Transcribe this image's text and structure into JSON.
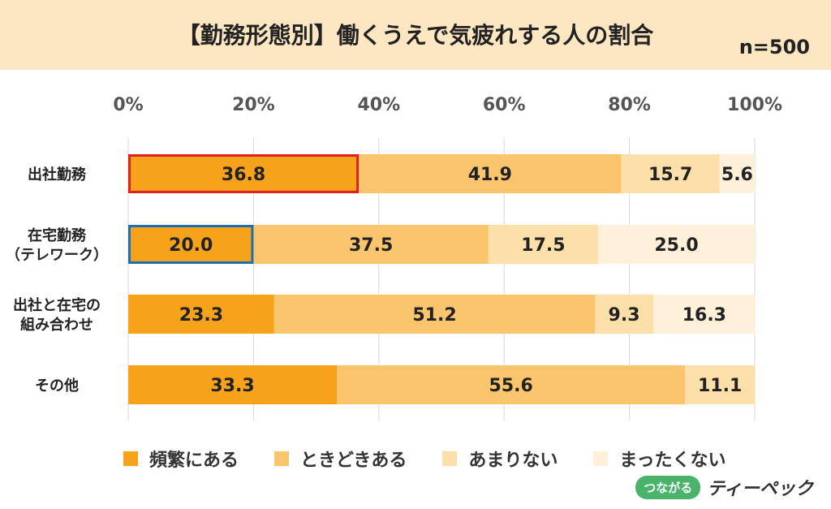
{
  "header": {
    "title": "【勤務形態別】働くうえで気疲れする人の割合",
    "sample": "n=500"
  },
  "colors": {
    "series": [
      "#f7a21b",
      "#fbc56e",
      "#fddfaa",
      "#fff0da"
    ],
    "header_bg": "#fde7c3",
    "highlight_1": "#e02020",
    "highlight_2": "#1f6fb0",
    "grid": "#d9d9d9"
  },
  "chart_data": {
    "type": "bar",
    "orientation": "horizontal",
    "stacked": true,
    "x_ticks": [
      "0%",
      "20%",
      "40%",
      "60%",
      "80%",
      "100%"
    ],
    "xlim": [
      0,
      100
    ],
    "categories": [
      {
        "lines": [
          "出社勤務"
        ]
      },
      {
        "lines": [
          "在宅勤務",
          "（テレワーク）"
        ]
      },
      {
        "lines": [
          "出社と在宅の",
          "組み合わせ"
        ]
      },
      {
        "lines": [
          "その他"
        ]
      }
    ],
    "series": [
      {
        "name": "頻繁にある",
        "values": [
          36.8,
          20.0,
          23.3,
          33.3
        ],
        "labels": [
          "36.8",
          "20.0",
          "23.3",
          "33.3"
        ]
      },
      {
        "name": "ときどきある",
        "values": [
          41.9,
          37.5,
          51.2,
          55.6
        ],
        "labels": [
          "41.9",
          "37.5",
          "51.2",
          "55.6"
        ]
      },
      {
        "name": "あまりない",
        "values": [
          15.7,
          17.5,
          9.3,
          11.1
        ],
        "labels": [
          "15.7",
          "17.5",
          "9.3",
          "11.1"
        ]
      },
      {
        "name": "まったくない",
        "values": [
          5.6,
          25.0,
          16.3,
          0
        ],
        "labels": [
          "5.6",
          "25.0",
          "16.3",
          ""
        ]
      }
    ],
    "highlights": [
      {
        "category_index": 0,
        "series_index": 0,
        "color": "#e02020"
      },
      {
        "category_index": 1,
        "series_index": 0,
        "color": "#1f6fb0"
      }
    ],
    "legend_position": "bottom",
    "grid": true
  },
  "logo": {
    "badge": "つながる",
    "text": "ティーペック"
  }
}
